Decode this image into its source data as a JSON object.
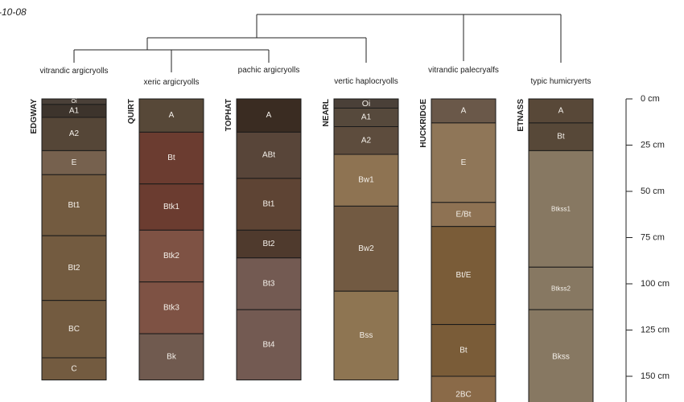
{
  "corner_text": "-10-08",
  "depth_axis": {
    "labels": [
      {
        "depth": 0,
        "label": "0 cm"
      },
      {
        "depth": 25,
        "label": "25 cm"
      },
      {
        "depth": 50,
        "label": "50 cm"
      },
      {
        "depth": 75,
        "label": "75 cm"
      },
      {
        "depth": 100,
        "label": "100 cm"
      },
      {
        "depth": 125,
        "label": "125 cm"
      },
      {
        "depth": 150,
        "label": "150 cm"
      }
    ]
  },
  "profiles": [
    {
      "name": "EDGWAY",
      "subgroup": "vitrandic argicryolls",
      "horizons": [
        {
          "name": "Oi",
          "top": 0,
          "bottom": 3,
          "color": "#4a4038"
        },
        {
          "name": "A1",
          "top": 3,
          "bottom": 10,
          "color": "#3d342c"
        },
        {
          "name": "A2",
          "top": 10,
          "bottom": 28,
          "color": "#554637"
        },
        {
          "name": "E",
          "top": 28,
          "bottom": 41,
          "color": "#76614e"
        },
        {
          "name": "Bt1",
          "top": 41,
          "bottom": 74,
          "color": "#735b40"
        },
        {
          "name": "Bt2",
          "top": 74,
          "bottom": 109,
          "color": "#735b40"
        },
        {
          "name": "BC",
          "top": 109,
          "bottom": 140,
          "color": "#735b40"
        },
        {
          "name": "C",
          "top": 140,
          "bottom": 152,
          "color": "#735b40"
        }
      ]
    },
    {
      "name": "QUIRT",
      "subgroup": "xeric argicryolls",
      "horizons": [
        {
          "name": "A",
          "top": 0,
          "bottom": 18,
          "color": "#574838"
        },
        {
          "name": "Bt",
          "top": 18,
          "bottom": 46,
          "color": "#6b3c30"
        },
        {
          "name": "Btk1",
          "top": 46,
          "bottom": 71,
          "color": "#6b3c30"
        },
        {
          "name": "Btk2",
          "top": 71,
          "bottom": 99,
          "color": "#7e5244"
        },
        {
          "name": "Btk3",
          "top": 99,
          "bottom": 127,
          "color": "#7e5244"
        },
        {
          "name": "Bk",
          "top": 127,
          "bottom": 152,
          "color": "#705a4f"
        }
      ]
    },
    {
      "name": "TOPHAT",
      "subgroup": "pachic argicryolls",
      "horizons": [
        {
          "name": "A",
          "top": 0,
          "bottom": 18,
          "color": "#3a2c22"
        },
        {
          "name": "ABt",
          "top": 18,
          "bottom": 43,
          "color": "#584539"
        },
        {
          "name": "Bt1",
          "top": 43,
          "bottom": 71,
          "color": "#5e4434"
        },
        {
          "name": "Bt2",
          "top": 71,
          "bottom": 86,
          "color": "#4f3a2d"
        },
        {
          "name": "Bt3",
          "top": 86,
          "bottom": 114,
          "color": "#735a52"
        },
        {
          "name": "Bt4",
          "top": 114,
          "bottom": 152,
          "color": "#735a52"
        }
      ]
    },
    {
      "name": "NEARL",
      "subgroup": "vertic haplocryolls",
      "horizons": [
        {
          "name": "Oi",
          "top": 0,
          "bottom": 5,
          "color": "#4a4038"
        },
        {
          "name": "A1",
          "top": 5,
          "bottom": 15,
          "color": "#56493c"
        },
        {
          "name": "A2",
          "top": 15,
          "bottom": 30,
          "color": "#5d4c3d"
        },
        {
          "name": "Bw1",
          "top": 30,
          "bottom": 58,
          "color": "#8e7352"
        },
        {
          "name": "Bw2",
          "top": 58,
          "bottom": 104,
          "color": "#725a42"
        },
        {
          "name": "Bss",
          "top": 104,
          "bottom": 152,
          "color": "#8e7552"
        }
      ]
    },
    {
      "name": "HUCKRIDGE",
      "subgroup": "vitrandic palecryalfs",
      "horizons": [
        {
          "name": "A",
          "top": 0,
          "bottom": 13,
          "color": "#6a5849"
        },
        {
          "name": "E",
          "top": 13,
          "bottom": 56,
          "color": "#8f7658"
        },
        {
          "name": "E/Bt",
          "top": 56,
          "bottom": 69,
          "color": "#8e7253"
        },
        {
          "name": "Bt/E",
          "top": 69,
          "bottom": 122,
          "color": "#7a5c38"
        },
        {
          "name": "Bt",
          "top": 122,
          "bottom": 150,
          "color": "#7a5c38"
        },
        {
          "name": "2BC",
          "top": 150,
          "bottom": 170,
          "color": "#8a6a48"
        }
      ]
    },
    {
      "name": "ETNASS",
      "subgroup": "typic humicryerts",
      "horizons": [
        {
          "name": "A",
          "top": 0,
          "bottom": 13,
          "color": "#584838"
        },
        {
          "name": "Bt",
          "top": 13,
          "bottom": 28,
          "color": "#574838"
        },
        {
          "name": "Btkss1",
          "top": 28,
          "bottom": 91,
          "color": "#877862"
        },
        {
          "name": "Btkss2",
          "top": 91,
          "bottom": 114,
          "color": "#877862"
        },
        {
          "name": "Bkss",
          "top": 114,
          "bottom": 165,
          "color": "#877862"
        }
      ]
    }
  ]
}
